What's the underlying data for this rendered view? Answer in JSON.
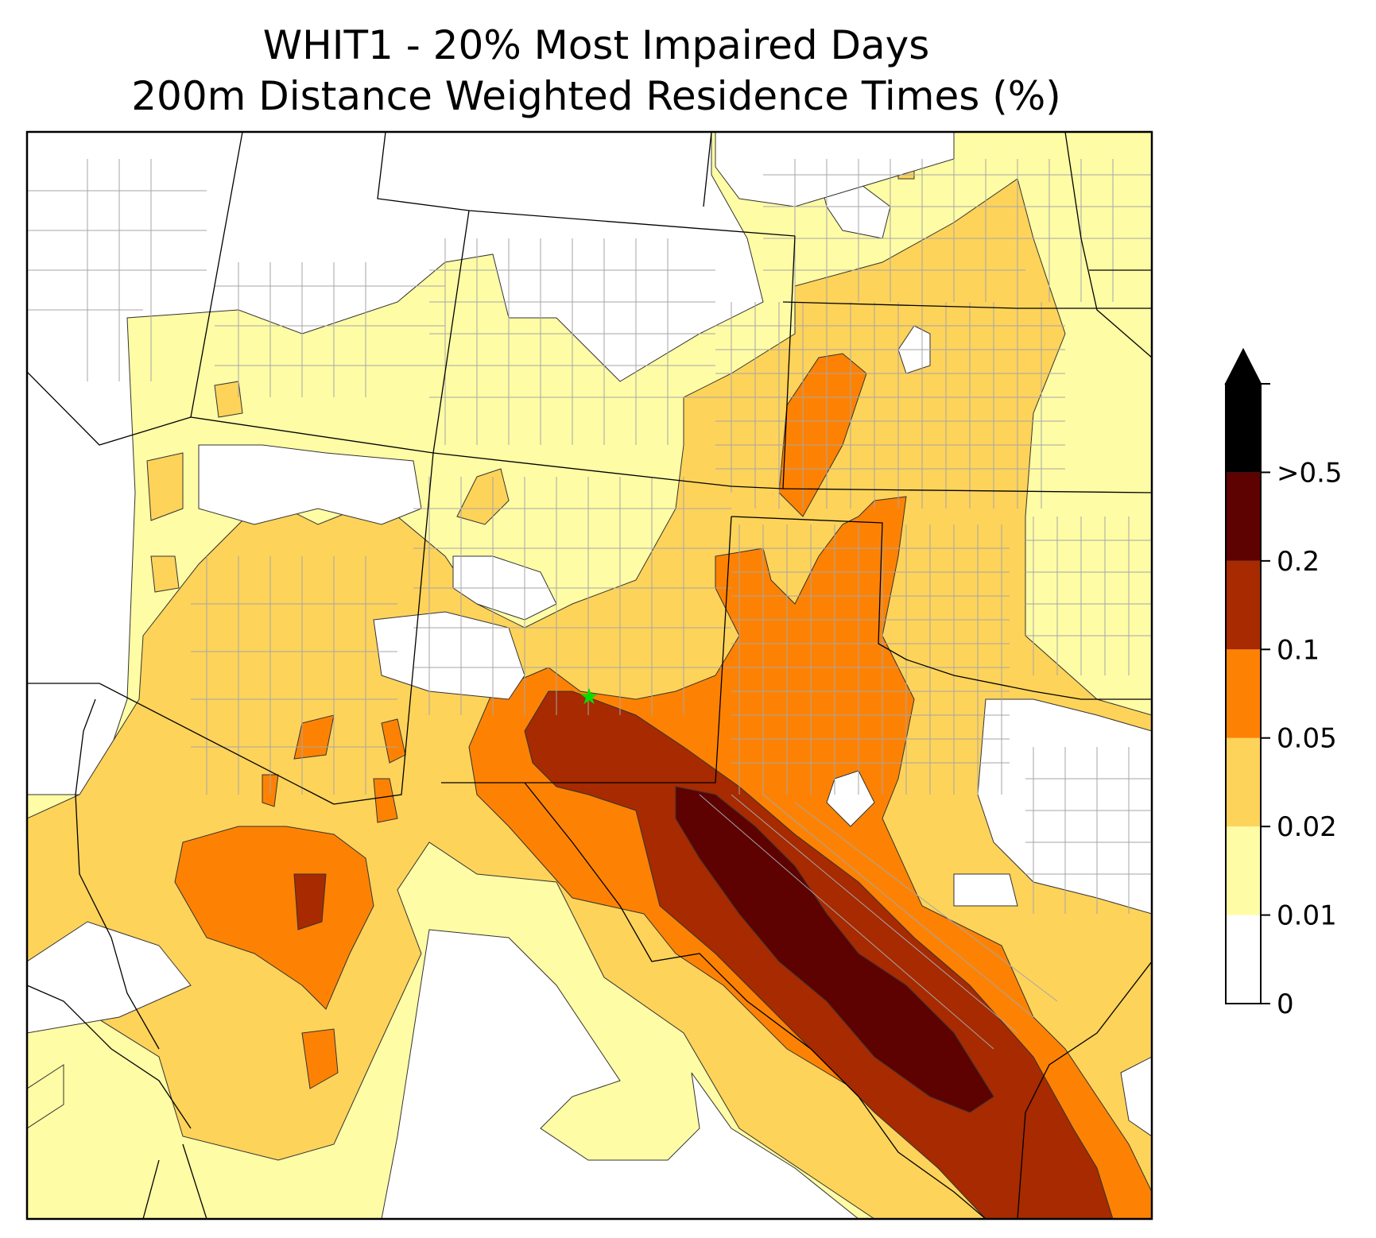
{
  "title_line1": "WHIT1 - 20% Most Impaired Days",
  "title_line2": "200m Distance Weighted Residence Times (%)",
  "colorbar": {
    "extend": "max",
    "levels": [
      {
        "label": "0",
        "color": "#ffffff"
      },
      {
        "label": "0.01",
        "color": "#fffca6"
      },
      {
        "label": "0.02",
        "color": "#fdd35a"
      },
      {
        "label": "0.05",
        "color": "#fd8204"
      },
      {
        "label": "0.1",
        "color": "#a72a01"
      },
      {
        "label": "0.2",
        "color": "#5d0101"
      },
      {
        "label": ">0.5",
        "color": "#000000"
      }
    ]
  },
  "site_marker": {
    "color": "#00e000",
    "symbol": "star"
  }
}
